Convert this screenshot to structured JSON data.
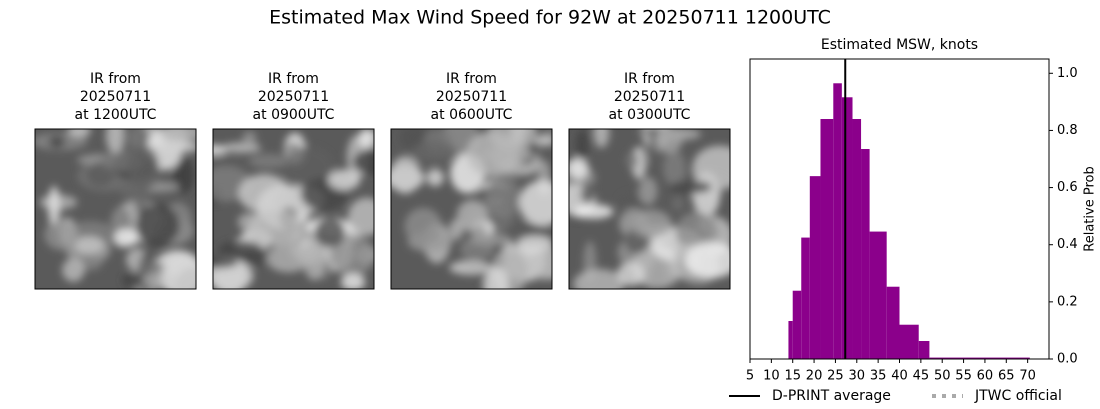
{
  "title": "Estimated Max Wind Speed for 92W at 20250711 1200UTC",
  "panels": [
    {
      "line1": "IR from",
      "line2": "20250711",
      "line3": "at 1200UTC"
    },
    {
      "line1": "IR from",
      "line2": "20250711",
      "line3": "at 0900UTC"
    },
    {
      "line1": "IR from",
      "line2": "20250711",
      "line3": "at 0600UTC"
    },
    {
      "line1": "IR from",
      "line2": "20250711",
      "line3": "at 0300UTC"
    }
  ],
  "chart_data": {
    "type": "histogram",
    "title": "Estimated MSW, knots",
    "y_label": "Relative Prob",
    "bins": [
      14,
      15,
      17,
      19,
      21.5,
      24.5,
      26.5,
      29,
      31,
      33,
      37,
      40,
      44.5,
      47,
      70.5
    ],
    "values": [
      0.133,
      0.239,
      0.425,
      0.64,
      0.84,
      0.965,
      0.916,
      0.84,
      0.735,
      0.446,
      0.253,
      0.12,
      0.063,
      0.005
    ],
    "color": "#8b008b",
    "xlim": [
      5,
      75
    ],
    "xticks": [
      5,
      10,
      15,
      20,
      25,
      30,
      35,
      40,
      45,
      50,
      55,
      60,
      65,
      70
    ],
    "ylim": [
      0,
      1.05
    ],
    "yticks": [
      {
        "value": 0,
        "label": "0.0"
      },
      0.2,
      0.4,
      0.6,
      0.8,
      {
        "value": 1,
        "label": "1.0"
      }
    ],
    "y_axis_side": "right",
    "dprint_average": 27.3,
    "legend": [
      {
        "name": "D-PRINT average",
        "color": "#000000",
        "style": "solid"
      },
      {
        "name": "JTWC official",
        "color": "#aaaaaa",
        "style": "dotted"
      }
    ]
  }
}
